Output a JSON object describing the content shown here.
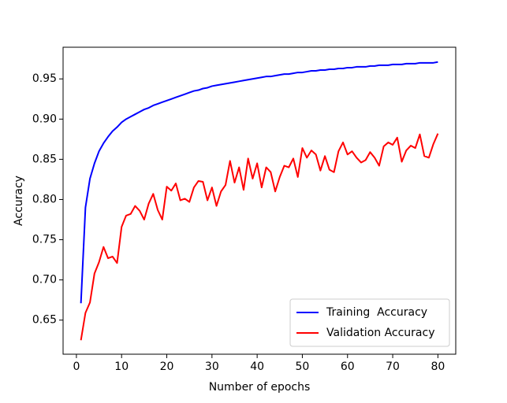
{
  "chart_data": {
    "type": "line",
    "xlabel": "Number of epochs",
    "ylabel": "Accuracy",
    "x": [
      1,
      2,
      3,
      4,
      5,
      6,
      7,
      8,
      9,
      10,
      11,
      12,
      13,
      14,
      15,
      16,
      17,
      18,
      19,
      20,
      21,
      22,
      23,
      24,
      25,
      26,
      27,
      28,
      29,
      30,
      31,
      32,
      33,
      34,
      35,
      36,
      37,
      38,
      39,
      40,
      41,
      42,
      43,
      44,
      45,
      46,
      47,
      48,
      49,
      50,
      51,
      52,
      53,
      54,
      55,
      56,
      57,
      58,
      59,
      60,
      61,
      62,
      63,
      64,
      65,
      66,
      67,
      68,
      69,
      70,
      71,
      72,
      73,
      74,
      75,
      76,
      77,
      78,
      79,
      80
    ],
    "series": [
      {
        "name": "Training  Accuracy",
        "color": "#0000ff",
        "values": [
          0.671,
          0.79,
          0.826,
          0.845,
          0.86,
          0.87,
          0.878,
          0.885,
          0.89,
          0.896,
          0.9,
          0.903,
          0.906,
          0.909,
          0.912,
          0.914,
          0.917,
          0.919,
          0.921,
          0.923,
          0.925,
          0.927,
          0.929,
          0.931,
          0.933,
          0.935,
          0.936,
          0.938,
          0.939,
          0.941,
          0.942,
          0.943,
          0.944,
          0.945,
          0.946,
          0.947,
          0.948,
          0.949,
          0.95,
          0.951,
          0.952,
          0.953,
          0.953,
          0.954,
          0.955,
          0.956,
          0.956,
          0.957,
          0.958,
          0.958,
          0.959,
          0.96,
          0.96,
          0.961,
          0.961,
          0.962,
          0.962,
          0.963,
          0.963,
          0.964,
          0.964,
          0.965,
          0.965,
          0.965,
          0.966,
          0.966,
          0.967,
          0.967,
          0.967,
          0.968,
          0.968,
          0.968,
          0.969,
          0.969,
          0.969,
          0.97,
          0.97,
          0.97,
          0.97,
          0.971
        ]
      },
      {
        "name": "Validation Accuracy",
        "color": "#ff0000",
        "values": [
          0.625,
          0.659,
          0.672,
          0.708,
          0.722,
          0.741,
          0.727,
          0.729,
          0.721,
          0.766,
          0.78,
          0.782,
          0.792,
          0.786,
          0.775,
          0.795,
          0.807,
          0.787,
          0.775,
          0.816,
          0.811,
          0.82,
          0.799,
          0.801,
          0.797,
          0.815,
          0.823,
          0.822,
          0.799,
          0.815,
          0.792,
          0.81,
          0.818,
          0.848,
          0.821,
          0.84,
          0.812,
          0.851,
          0.826,
          0.845,
          0.815,
          0.84,
          0.834,
          0.81,
          0.828,
          0.842,
          0.84,
          0.851,
          0.828,
          0.864,
          0.852,
          0.861,
          0.856,
          0.836,
          0.854,
          0.837,
          0.834,
          0.86,
          0.871,
          0.856,
          0.86,
          0.852,
          0.846,
          0.849,
          0.859,
          0.852,
          0.842,
          0.866,
          0.871,
          0.868,
          0.877,
          0.847,
          0.861,
          0.867,
          0.864,
          0.881,
          0.854,
          0.852,
          0.869,
          0.882
        ]
      }
    ],
    "xlim": [
      -2.95,
      83.95
    ],
    "xticks": [
      0,
      10,
      20,
      30,
      40,
      50,
      60,
      70,
      80
    ],
    "ylim": [
      0.6076,
      0.9894
    ],
    "yticks": [
      0.65,
      {
        "value": 0.7,
        "label": "0.70"
      },
      0.75,
      {
        "value": 0.8,
        "label": "0.80"
      },
      0.85,
      {
        "value": 0.9,
        "label": "0.90"
      },
      0.95
    ],
    "grid": false,
    "legend": "lower right"
  }
}
